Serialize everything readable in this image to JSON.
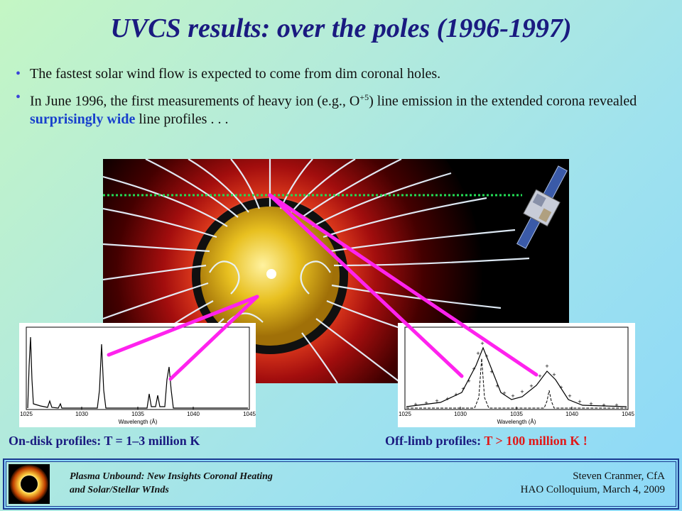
{
  "title": "UVCS results:  over the poles (1996-1997)",
  "bullets": {
    "b1": "The fastest solar wind flow is expected to come from dim coronal holes.",
    "b2_pre": "In June 1996, the first measurements of heavy ion (e.g., O",
    "b2_sup": "+5",
    "b2_mid": ") line emission in the extended corona revealed ",
    "b2_emph": "surprisingly wide",
    "b2_post": " line profiles . . ."
  },
  "plots": {
    "left": {
      "ticks": [
        "1025",
        "1030",
        "1035",
        "1040",
        "1045"
      ],
      "xlabel": "Wavelength (Å)"
    },
    "right": {
      "ticks": [
        "1025",
        "1030",
        "1035",
        "1040",
        "1045"
      ],
      "xlabel": "Wavelength (Å)"
    }
  },
  "captions": {
    "left": "On-disk profiles: T = 1–3 million K",
    "right_pre": "Off-limb profiles: ",
    "right_red": "T > 100 million K !"
  },
  "footer": {
    "left_line1": "Plasma Unbound:  New Insights Coronal Heating",
    "left_line2": "and Solar/Stellar WInds",
    "right_line1": "Steven Cranmer,  CfA",
    "right_line2": "HAO Colloquium, March 4, 2009"
  },
  "colors": {
    "title": "#1a1a80",
    "emphasis": "#1840cc",
    "red": "#e01818",
    "magenta": "#ff22ee",
    "dotted_line": "#22dd55"
  }
}
